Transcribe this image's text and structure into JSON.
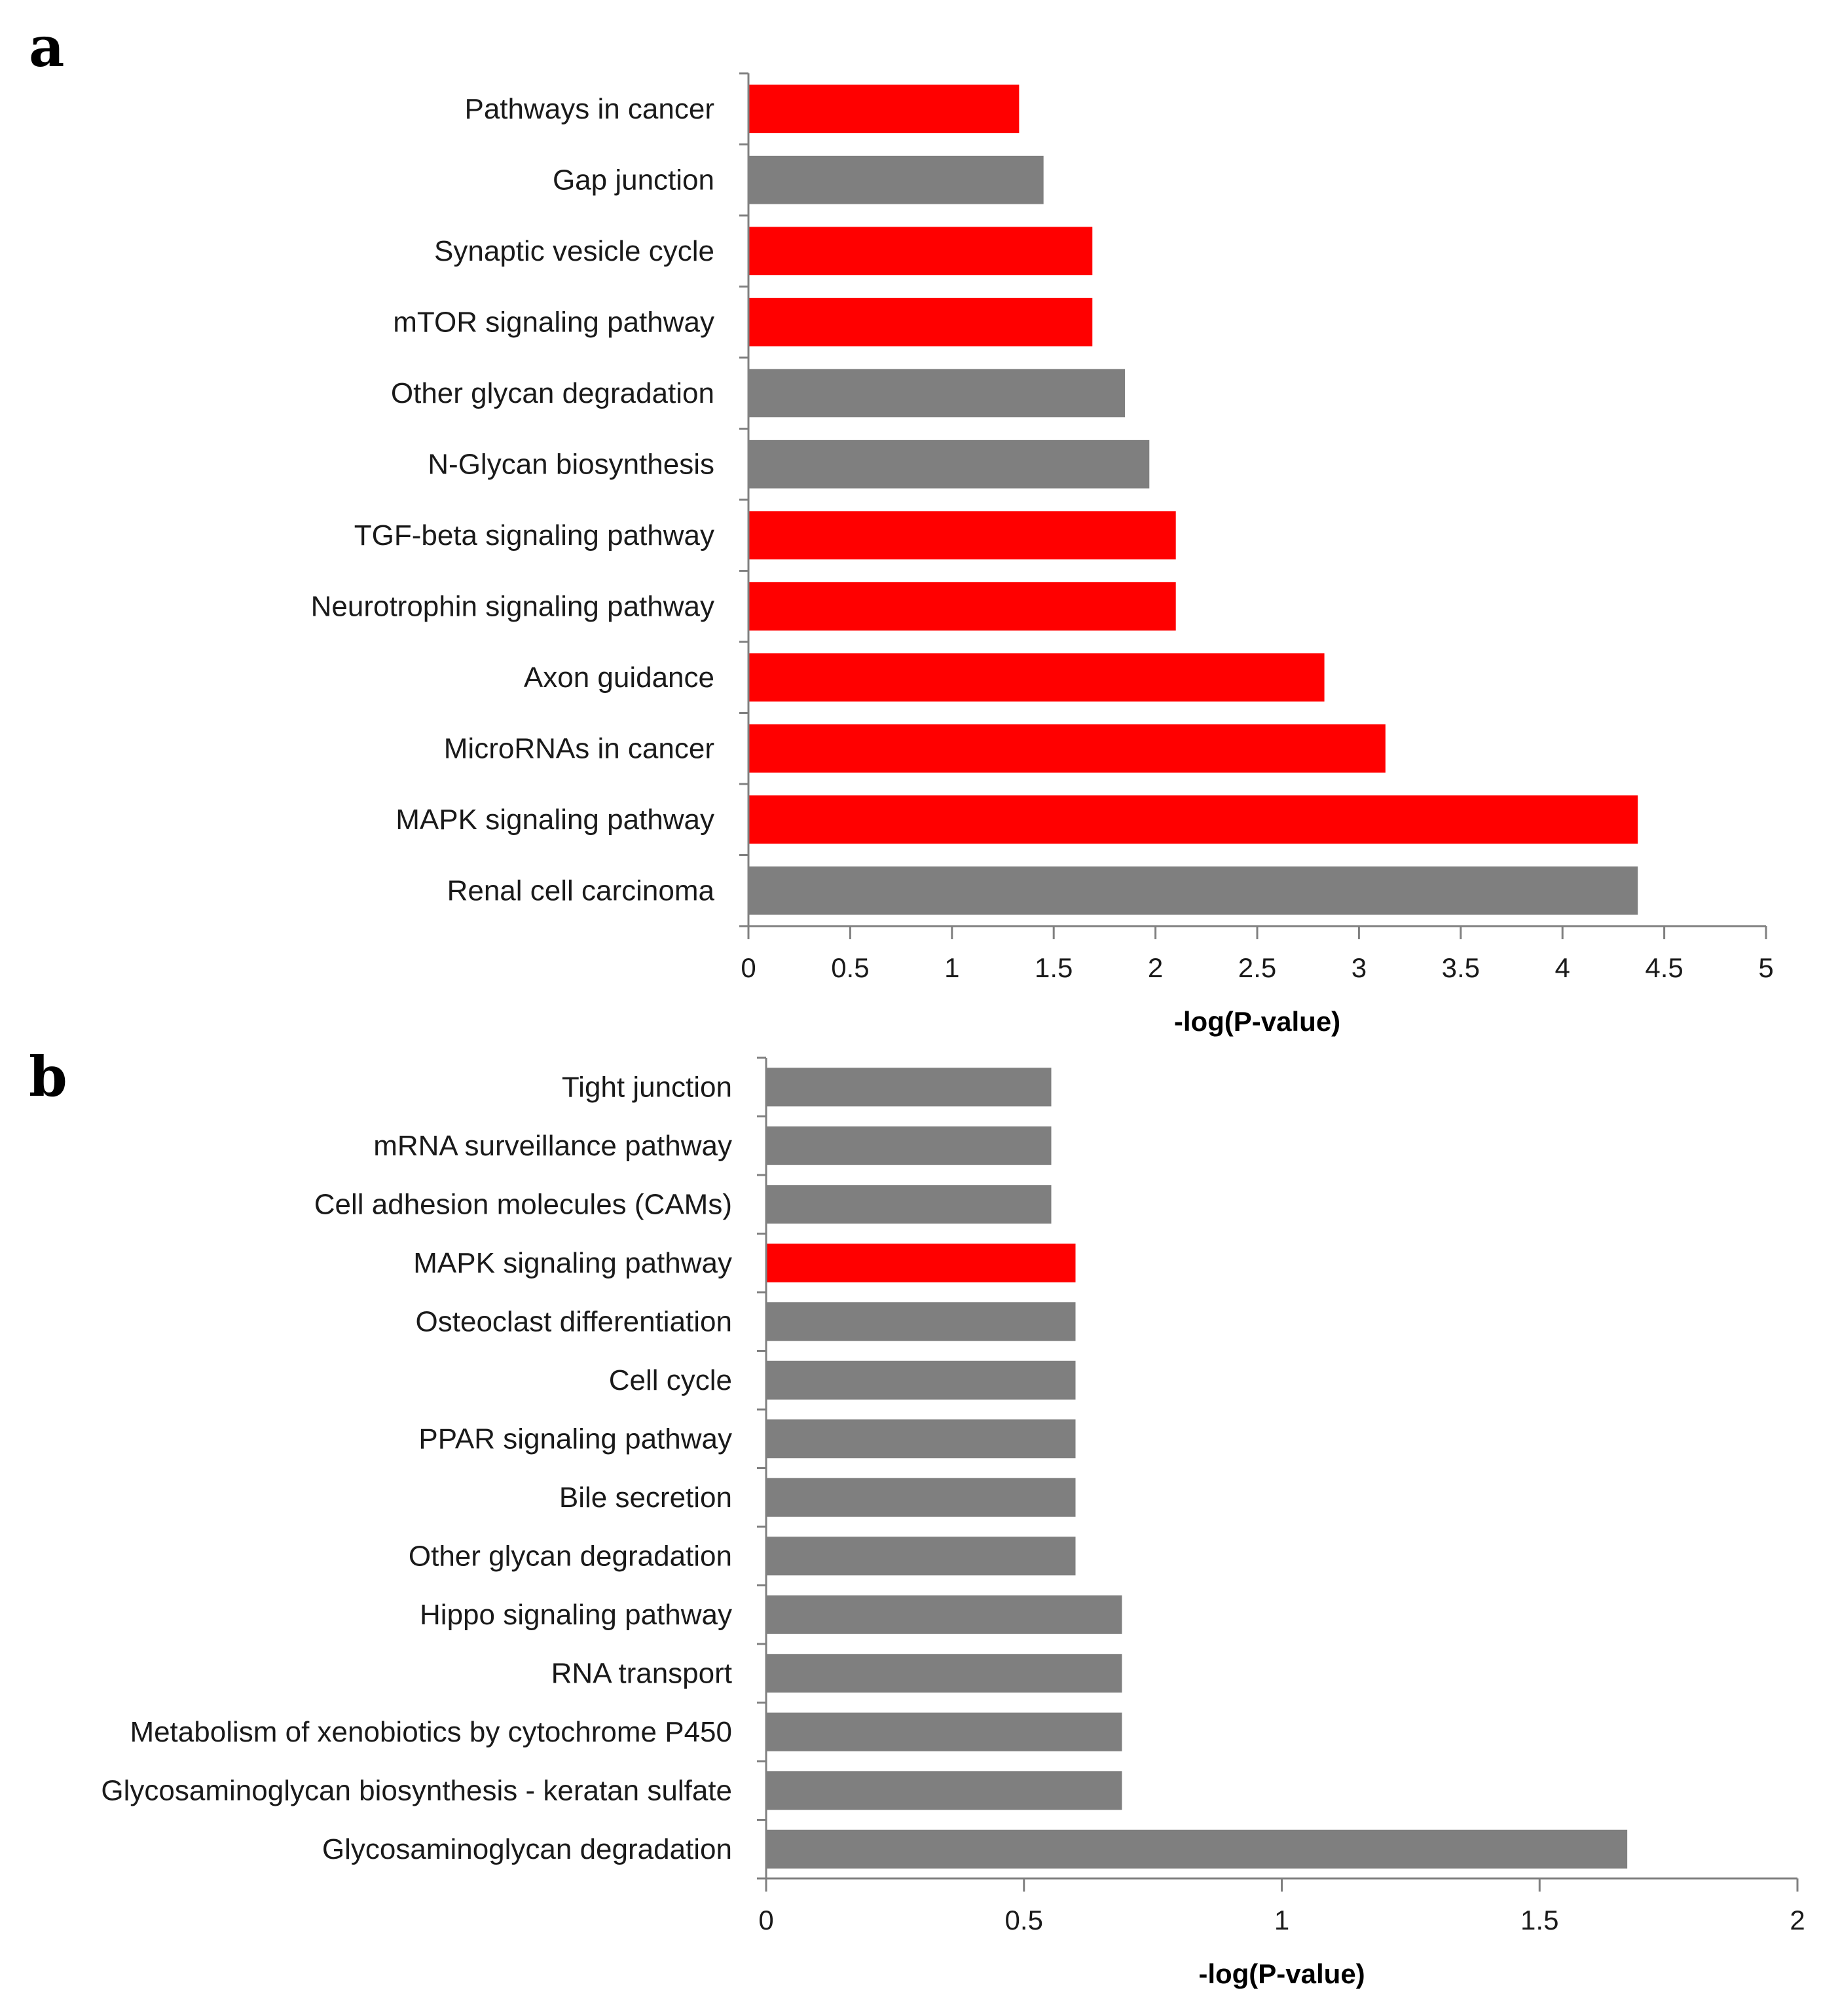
{
  "panels": {
    "a": {
      "letter": "a"
    },
    "b": {
      "letter": "b"
    }
  },
  "colors": {
    "red": "#ff0000",
    "gray": "#7f7f7f",
    "axis": "#808080"
  },
  "chart_data": [
    {
      "id": "a",
      "type": "bar",
      "orientation": "horizontal",
      "title": "",
      "xlabel": "-log(P-value)",
      "ylabel": "",
      "xlim": [
        0,
        5
      ],
      "xticks": [
        0,
        0.5,
        1,
        1.5,
        2,
        2.5,
        3,
        3.5,
        4,
        4.5,
        5
      ],
      "xtick_labels": [
        "0",
        "0.5",
        "1",
        "1.5",
        "2",
        "2.5",
        "3",
        "3.5",
        "4",
        "4.5",
        "5"
      ],
      "grid": false,
      "legend": "none",
      "categories": [
        "Pathways in cancer",
        "Gap junction",
        "Synaptic vesicle cycle",
        "mTOR signaling pathway",
        "Other glycan degradation",
        "N-Glycan biosynthesis",
        "TGF-beta signaling pathway",
        "Neurotrophin signaling pathway",
        "Axon guidance",
        "MicroRNAs in cancer",
        "MAPK signaling pathway",
        "Renal cell carcinoma"
      ],
      "values": [
        1.33,
        1.45,
        1.69,
        1.69,
        1.85,
        1.97,
        2.1,
        2.1,
        2.83,
        3.13,
        4.37,
        4.37
      ],
      "bar_colors": [
        "red",
        "gray",
        "red",
        "red",
        "gray",
        "gray",
        "red",
        "red",
        "red",
        "red",
        "red",
        "gray"
      ]
    },
    {
      "id": "b",
      "type": "bar",
      "orientation": "horizontal",
      "title": "",
      "xlabel": "-log(P-value)",
      "ylabel": "",
      "xlim": [
        0,
        2
      ],
      "xticks": [
        0,
        0.5,
        1,
        1.5,
        2
      ],
      "xtick_labels": [
        "0",
        "0.5",
        "1",
        "1.5",
        "2"
      ],
      "grid": false,
      "legend": "none",
      "categories": [
        "Tight junction",
        "mRNA surveillance pathway",
        "Cell adhesion molecules (CAMs)",
        "MAPK signaling pathway",
        "Osteoclast differentiation",
        "Cell cycle",
        "PPAR signaling pathway",
        "Bile secretion",
        "Other glycan degradation",
        "Hippo signaling pathway",
        "RNA transport",
        "Metabolism of xenobiotics by cytochrome P450",
        "Glycosaminoglycan biosynthesis - keratan sulfate",
        "Glycosaminoglycan degradation"
      ],
      "values": [
        0.553,
        0.553,
        0.553,
        0.6,
        0.6,
        0.6,
        0.6,
        0.6,
        0.6,
        0.69,
        0.69,
        0.69,
        0.69,
        1.67
      ],
      "bar_colors": [
        "gray",
        "gray",
        "gray",
        "red",
        "gray",
        "gray",
        "gray",
        "gray",
        "gray",
        "gray",
        "gray",
        "gray",
        "gray",
        "gray"
      ]
    }
  ]
}
